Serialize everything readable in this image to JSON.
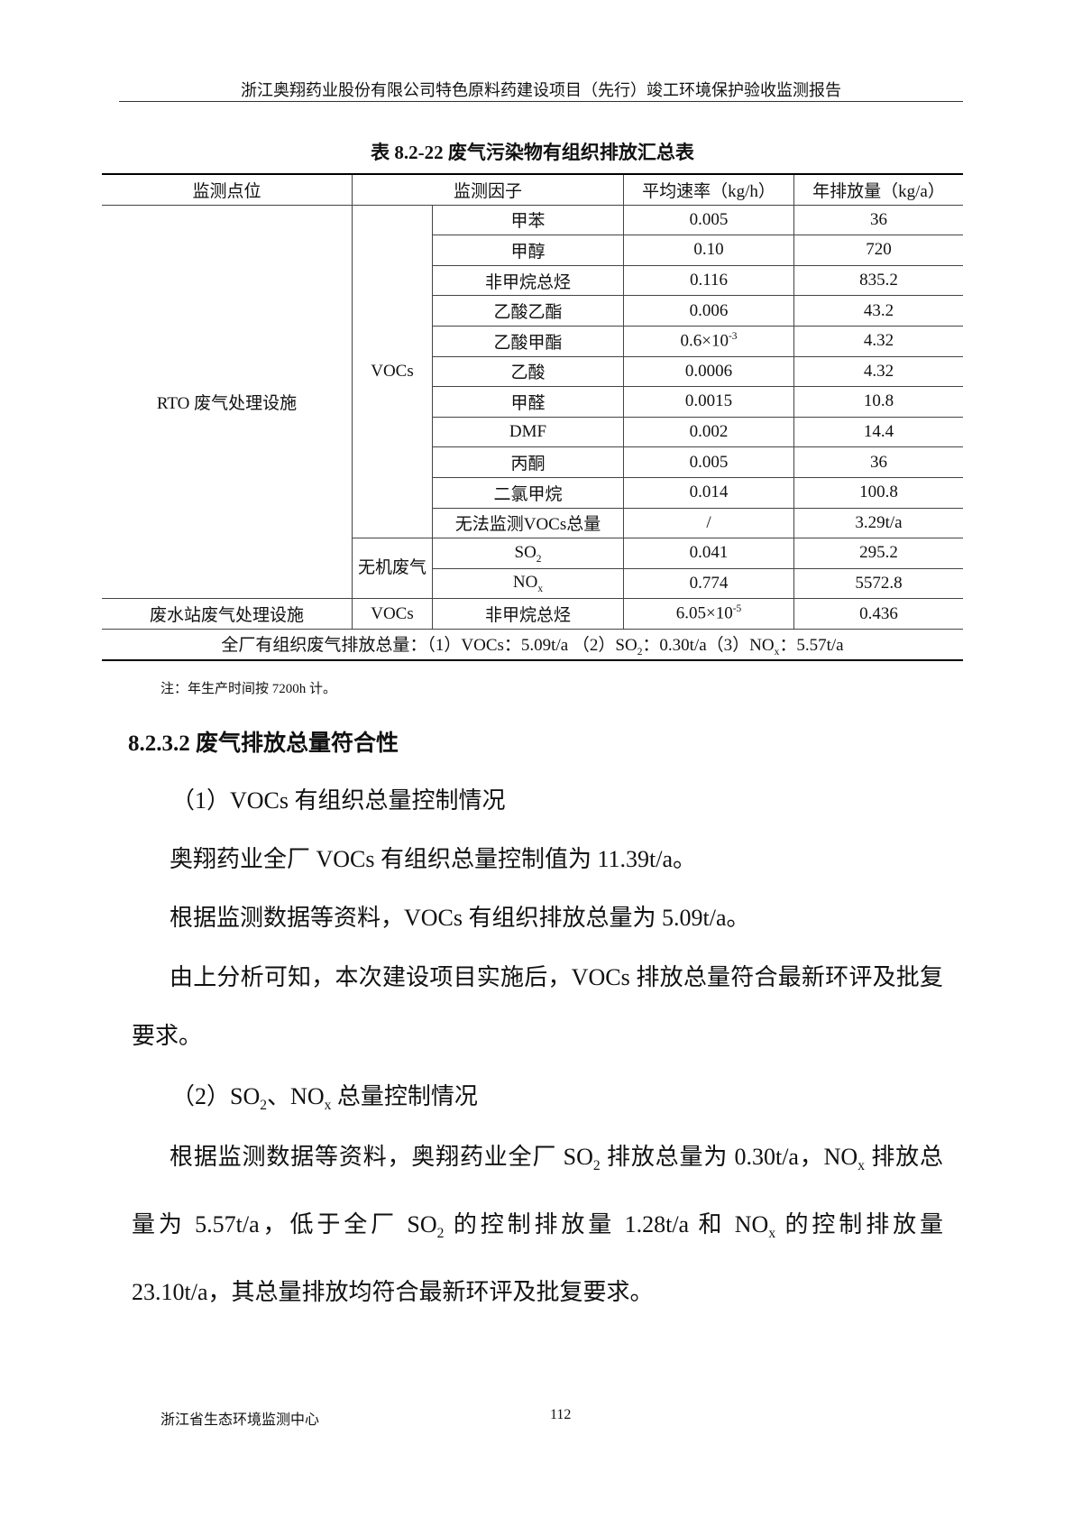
{
  "header": "浙江奥翔药业股份有限公司特色原料药建设项目（先行）竣工环境保护验收监测报告",
  "table": {
    "title": "表 8.2-22  废气污染物有组织排放汇总表",
    "headers": [
      "监测点位",
      "监测因子",
      "平均速率（kg/h）",
      "年排放量（kg/a）"
    ],
    "site1": "RTO  废气处理设施",
    "group_vocs": "VOCs",
    "group_inorganic": "无机废气",
    "rows": [
      {
        "factor": "甲苯",
        "rate": "0.005",
        "annual": "36"
      },
      {
        "factor": "甲醇",
        "rate": "0.10",
        "annual": "720"
      },
      {
        "factor": "非甲烷总烃",
        "rate": "0.116",
        "annual": "835.2"
      },
      {
        "factor": "乙酸乙酯",
        "rate": "0.006",
        "annual": "43.2"
      },
      {
        "factor": "乙酸甲酯",
        "rate": "0.6×10",
        "rate_sup": "-3",
        "annual": "4.32"
      },
      {
        "factor": "乙酸",
        "rate": "0.0006",
        "annual": "4.32"
      },
      {
        "factor": "甲醛",
        "rate": "0.0015",
        "annual": "10.8"
      },
      {
        "factor": "DMF",
        "rate": "0.002",
        "annual": "14.4"
      },
      {
        "factor": "丙酮",
        "rate": "0.005",
        "annual": "36"
      },
      {
        "factor": "二氯甲烷",
        "rate": "0.014",
        "annual": "100.8"
      },
      {
        "factor": "无法监测VOCs总量",
        "rate": "/",
        "annual": "3.29t/a"
      },
      {
        "factor": "SO",
        "factor_sub": "2",
        "rate": "0.041",
        "annual": "295.2"
      },
      {
        "factor": "NO",
        "factor_sub": "x",
        "rate": "0.774",
        "annual": "5572.8"
      }
    ],
    "site2": "废水站废气处理设施",
    "site2_group": "VOCs",
    "site2_row": {
      "factor": "非甲烷总烃",
      "rate": "6.05×10",
      "rate_sup": "-5",
      "annual": "0.436"
    },
    "total": [
      {
        "t": "全厂有组织废气排放总量：（1）VOCs：5.09t/a （2）SO"
      },
      {
        "t": "2",
        "sub": true
      },
      {
        "t": "：0.30t/a（3）NO"
      },
      {
        "t": "x",
        "sub": true
      },
      {
        "t": "：5.57t/a"
      }
    ]
  },
  "note": "注：年生产时间按 7200h 计。",
  "section_heading": "8.2.3.2 废气排放总量符合性",
  "paragraphs": [
    [
      {
        "t": "（1）VOCs 有组织总量控制情况"
      }
    ],
    [
      {
        "t": "奥翔药业全厂 VOCs 有组织总量控制值为 11.39t/a。"
      }
    ],
    [
      {
        "t": "根据监测数据等资料，VOCs 有组织排放总量为 5.09t/a。"
      }
    ],
    [
      {
        "t": "由上分析可知，本次建设项目实施后，VOCs 排放总量符合最新环评及批复要求。"
      }
    ],
    [
      {
        "t": "（2）SO"
      },
      {
        "t": "2",
        "sub": true
      },
      {
        "t": "、NO"
      },
      {
        "t": "x",
        "sub": true
      },
      {
        "t": " 总量控制情况"
      }
    ],
    [
      {
        "t": "根据监测数据等资料，奥翔药业全厂 SO"
      },
      {
        "t": "2",
        "sub": true
      },
      {
        "t": " 排放总量为 0.30t/a，NO"
      },
      {
        "t": "x",
        "sub": true
      },
      {
        "t": " 排放总量为 5.57t/a，低于全厂 SO"
      },
      {
        "t": "2",
        "sub": true
      },
      {
        "t": " 的控制排放量 1.28t/a 和 NO"
      },
      {
        "t": "x",
        "sub": true
      },
      {
        "t": " 的控制排放量 23.10t/a，其总量排放均符合最新环评及批复要求。"
      }
    ]
  ],
  "footer": {
    "org": "浙江省生态环境监测中心",
    "page": "112"
  }
}
